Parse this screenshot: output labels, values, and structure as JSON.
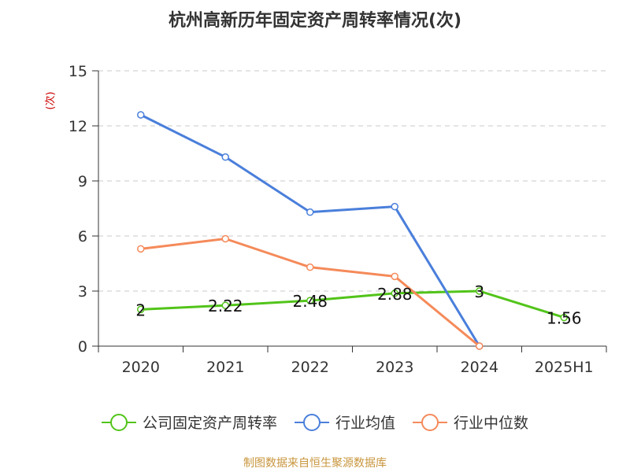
{
  "chart_data": {
    "type": "line",
    "title": "杭州高新历年固定资产周转率情况(次)",
    "ylabel": "(次)",
    "xlabel": "",
    "categories": [
      "2020",
      "2021",
      "2022",
      "2023",
      "2024",
      "2025H1"
    ],
    "ylim": [
      0,
      15
    ],
    "yticks": [
      0,
      3,
      6,
      9,
      12,
      15
    ],
    "grid": true,
    "legend_position": "bottom",
    "series": [
      {
        "name": "公司固定资产周转率",
        "color": "#52c41a",
        "values": [
          2,
          2.22,
          2.48,
          2.88,
          3,
          1.56
        ],
        "labels": [
          "2",
          "2.22",
          "2.48",
          "2.88",
          "3",
          "1.56"
        ]
      },
      {
        "name": "行业均值",
        "color": "#4a7fdb",
        "values": [
          12.6,
          10.3,
          7.3,
          7.6,
          0,
          null
        ],
        "labels": []
      },
      {
        "name": "行业中位数",
        "color": "#f58a5a",
        "values": [
          5.3,
          5.85,
          4.3,
          3.8,
          0,
          null
        ],
        "labels": []
      }
    ]
  },
  "source_note": "制图数据来自恒生聚源数据库"
}
